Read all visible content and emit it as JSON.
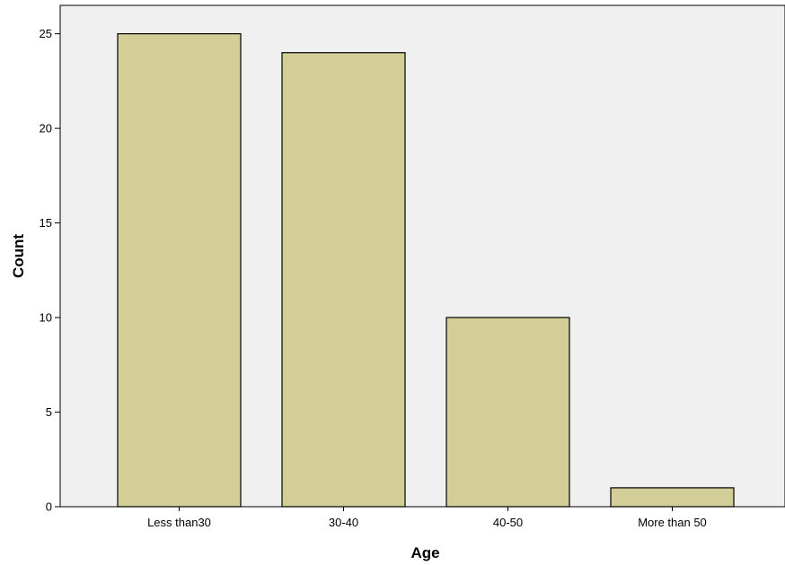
{
  "chart_data": {
    "type": "bar",
    "categories": [
      "Less than30",
      "30-40",
      "40-50",
      "More than 50"
    ],
    "values": [
      25,
      24,
      10,
      1
    ],
    "title": "",
    "xlabel": "Age",
    "ylabel": "Count",
    "ylim": [
      0,
      26.5
    ],
    "yticks": [
      0,
      5,
      10,
      15,
      20,
      25
    ],
    "grid": false,
    "legend": "none",
    "colors": {
      "bar_fill": "#d3cd97",
      "bar_stroke": "#000000",
      "plot_background": "#f0f0f0",
      "page_background": "#ffffff"
    }
  }
}
